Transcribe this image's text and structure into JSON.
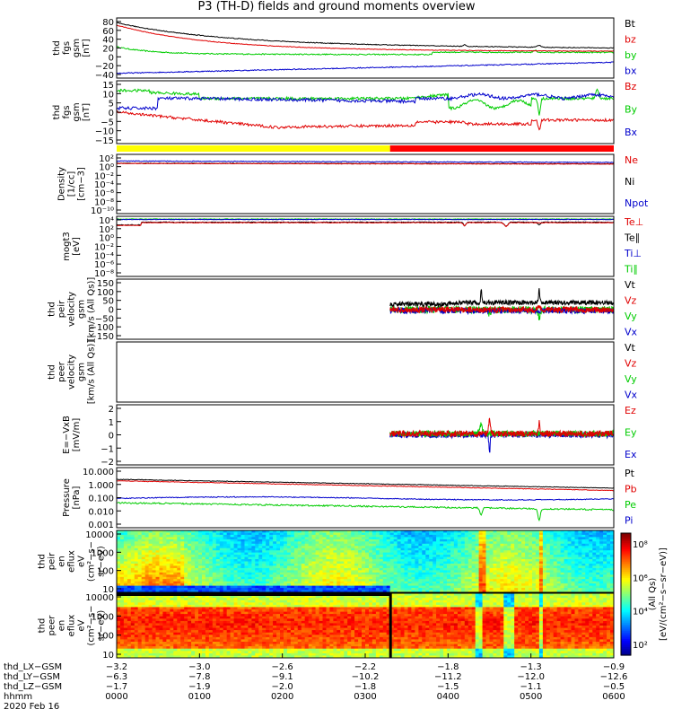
{
  "title": "P3 (TH-D) fields and ground moments overview",
  "date": "2020 Feb 16",
  "colors": {
    "black": "#000000",
    "red": "#e00000",
    "green": "#00cc00",
    "blue": "#0000cc",
    "yellow": "#ffff00",
    "mode_red": "#ff0000"
  },
  "panels": [
    {
      "ylabel": [
        "thd",
        "fgs",
        "gsm",
        "[nT]"
      ],
      "ticks": [
        "80",
        "60",
        "40",
        "20",
        "0",
        "−20",
        "−40"
      ],
      "legend": [
        {
          "text": "Bt",
          "color": "black"
        },
        {
          "text": "bz",
          "color": "red"
        },
        {
          "text": "by",
          "color": "green"
        },
        {
          "text": "bx",
          "color": "blue"
        }
      ]
    },
    {
      "ylabel": [
        "thd",
        "fgs",
        "gsm",
        "[nT]"
      ],
      "ticks": [
        "15",
        "10",
        "5",
        "0",
        "−5",
        "−10",
        "−15"
      ],
      "legend": [
        {
          "text": "Bz",
          "color": "red"
        },
        {
          "text": "By",
          "color": "green"
        },
        {
          "text": "Bx",
          "color": "blue"
        }
      ]
    },
    {
      "ylabel": [
        "Density",
        "[1/cc]",
        "[cm−3]"
      ],
      "ticks": [
        "10²",
        "10⁰",
        "10⁻²",
        "10⁻⁴",
        "10⁻⁶",
        "10⁻⁸",
        "10⁻¹⁰"
      ],
      "legend": [
        {
          "text": "Ne",
          "color": "red"
        },
        {
          "text": "Ni",
          "color": "black"
        },
        {
          "text": "Npot",
          "color": "blue"
        }
      ]
    },
    {
      "ylabel": [
        "mogt3",
        "[eV]"
      ],
      "ticks": [
        "10⁴",
        "10²",
        "10⁰",
        "10⁻²",
        "10⁻⁴",
        "10⁻⁶",
        "10⁻⁸"
      ],
      "legend": [
        {
          "text": "Te⊥",
          "color": "red"
        },
        {
          "text": "Te∥",
          "color": "black"
        },
        {
          "text": "Ti⊥",
          "color": "blue"
        },
        {
          "text": "Ti∥",
          "color": "green"
        }
      ]
    },
    {
      "ylabel": [
        "thd",
        "peir",
        "velocity",
        "gsm",
        "[km/s (All Qs)]"
      ],
      "ticks": [
        "150",
        "100",
        "50",
        "0",
        "−50",
        "−100",
        "−150"
      ],
      "legend": [
        {
          "text": "Vt",
          "color": "black"
        },
        {
          "text": "Vz",
          "color": "red"
        },
        {
          "text": "Vy",
          "color": "green"
        },
        {
          "text": "Vx",
          "color": "blue"
        }
      ]
    },
    {
      "ylabel": [
        "thd",
        "peer",
        "velocity",
        "gsm",
        "[km/s (All Qs)]"
      ],
      "ticks": [],
      "legend": [
        {
          "text": "Vt",
          "color": "black"
        },
        {
          "text": "Vz",
          "color": "red"
        },
        {
          "text": "Vy",
          "color": "green"
        },
        {
          "text": "Vx",
          "color": "blue"
        }
      ]
    },
    {
      "ylabel": [
        "E=−VxB",
        "[mV/m]"
      ],
      "ticks": [
        "2",
        "1",
        "0",
        "−1",
        "−2"
      ],
      "legend": [
        {
          "text": "Ez",
          "color": "red"
        },
        {
          "text": "Ey",
          "color": "green"
        },
        {
          "text": "Ex",
          "color": "blue"
        }
      ]
    },
    {
      "ylabel": [
        "Pressure",
        "[nPa]"
      ],
      "ticks": [
        "10.000",
        "1.000",
        "0.100",
        "0.010",
        "0.001"
      ],
      "legend": [
        {
          "text": "Pt",
          "color": "black"
        },
        {
          "text": "Pb",
          "color": "red"
        },
        {
          "text": "Pe",
          "color": "green"
        },
        {
          "text": "Pi",
          "color": "blue"
        }
      ]
    },
    {
      "ylabel": [
        "thd",
        "peir",
        "en",
        "eflux",
        "eV",
        "(cm²−s−",
        "sr−eV)"
      ],
      "ticks": [
        "10000",
        "1000",
        "100",
        "10"
      ],
      "legend": []
    },
    {
      "ylabel": [
        "thd",
        "peer",
        "en",
        "eflux",
        "eV",
        "(cm²−s−",
        "sr−eV)"
      ],
      "ticks": [
        "10000",
        "1000",
        "100",
        "10"
      ],
      "legend": []
    }
  ],
  "colorbar": {
    "label": "[eV/(cm²−s−sr−eV)]",
    "sublabel": "(All Qs)",
    "ticks": [
      "10⁸",
      "10⁶",
      "10⁴",
      "10²"
    ]
  },
  "xaxis": {
    "rows": [
      {
        "label": "thd_LX−GSM",
        "values": [
          "−3.2",
          "−3.0",
          "−2.6",
          "−2.2",
          "−1.8",
          "−1.3",
          "−0.9"
        ]
      },
      {
        "label": "thd_LY−GSM",
        "values": [
          "−6.3",
          "−7.8",
          "−9.1",
          "−10.2",
          "−11.2",
          "−12.0",
          "−12.6"
        ]
      },
      {
        "label": "thd_LZ−GSM",
        "values": [
          "−1.7",
          "−1.9",
          "−2.0",
          "−1.8",
          "−1.5",
          "−1.1",
          "−0.5"
        ]
      },
      {
        "label": "hhmm",
        "values": [
          "0000",
          "0100",
          "0200",
          "0300",
          "0400",
          "0500",
          "0600"
        ]
      }
    ]
  },
  "chart_data": {
    "type": "line",
    "x_time_hours": [
      0,
      6
    ],
    "mode_bar": [
      {
        "start": "0000",
        "end": "0318",
        "color": "yellow"
      },
      {
        "start": "0318",
        "end": "0600",
        "color": "mode_red"
      }
    ],
    "series_approx": {
      "Bt": [
        72,
        60,
        50,
        42,
        38,
        36,
        35,
        33,
        32,
        31,
        30,
        30,
        29,
        28,
        28,
        27,
        26,
        25,
        24,
        22,
        22
      ],
      "bz": [
        52,
        45,
        35,
        28,
        24,
        22,
        21,
        20,
        20,
        19,
        19,
        19,
        18,
        18,
        18,
        18,
        17,
        17,
        16,
        16,
        16
      ]
    }
  }
}
